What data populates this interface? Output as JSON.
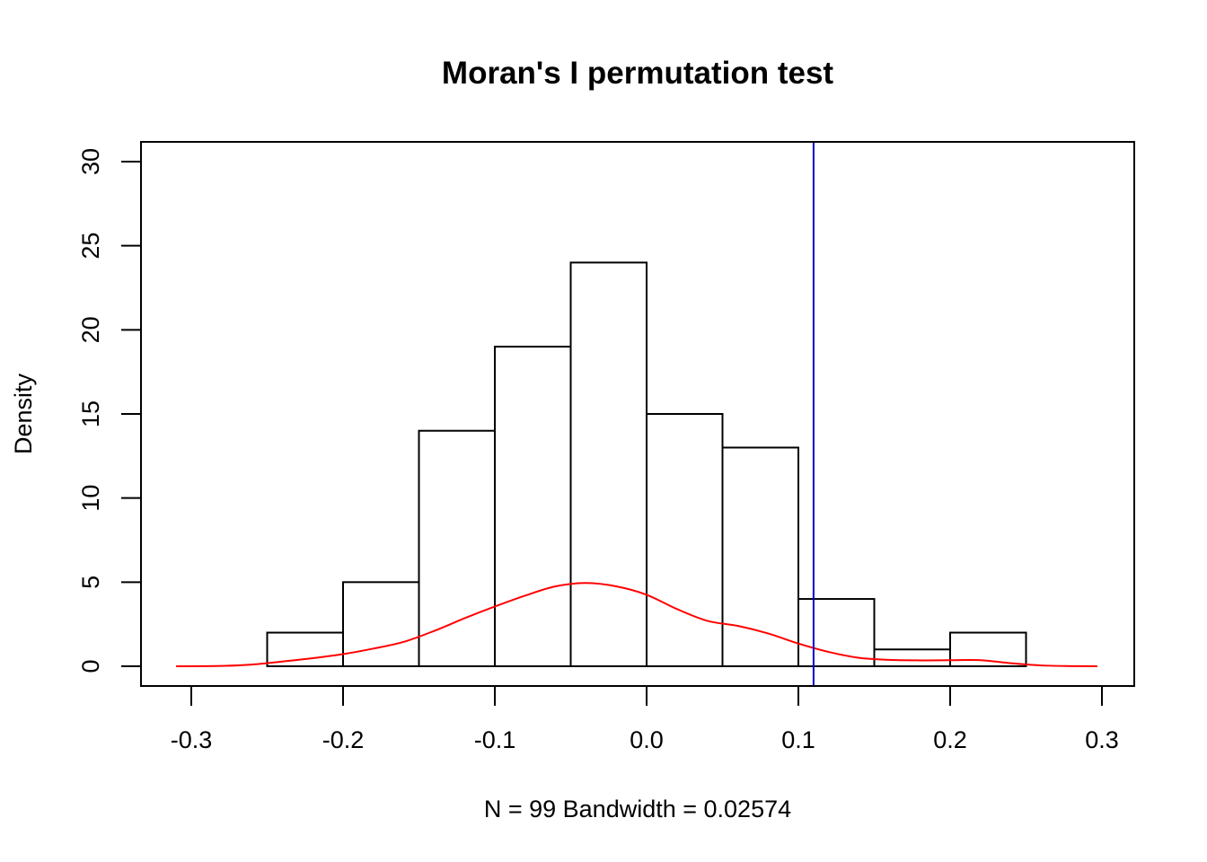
{
  "chart_data": {
    "type": "bar",
    "title": "Moran's I permutation test",
    "xlabel": "N = 99   Bandwidth = 0.02574",
    "ylabel": "Density",
    "xlim": [
      -0.3,
      0.3
    ],
    "ylim": [
      0,
      30
    ],
    "x_ticks": [
      -0.3,
      -0.2,
      -0.1,
      0.0,
      0.1,
      0.2,
      0.3
    ],
    "x_tick_labels": [
      "-0.3",
      "-0.2",
      "-0.1",
      "0.0",
      "0.1",
      "0.2",
      "0.3"
    ],
    "y_ticks": [
      0,
      5,
      10,
      15,
      20,
      25,
      30
    ],
    "y_tick_labels": [
      "0",
      "5",
      "10",
      "15",
      "20",
      "25",
      "30"
    ],
    "histogram": {
      "bin_edges": [
        -0.25,
        -0.2,
        -0.15,
        -0.1,
        -0.05,
        0.0,
        0.05,
        0.1,
        0.15,
        0.2,
        0.25
      ],
      "density": [
        2,
        5,
        14,
        19,
        24,
        15,
        13,
        4,
        1,
        2
      ],
      "fill": "#ffffff",
      "stroke": "#000000"
    },
    "density_curve": {
      "color": "#ff0000",
      "x": [
        -0.31,
        -0.28,
        -0.26,
        -0.24,
        -0.22,
        -0.2,
        -0.18,
        -0.16,
        -0.14,
        -0.12,
        -0.1,
        -0.08,
        -0.06,
        -0.04,
        -0.02,
        0.0,
        0.02,
        0.04,
        0.06,
        0.08,
        0.1,
        0.12,
        0.14,
        0.16,
        0.18,
        0.2,
        0.22,
        0.24,
        0.26,
        0.28,
        0.297
      ],
      "y": [
        0.0,
        0.02,
        0.1,
        0.28,
        0.48,
        0.72,
        1.05,
        1.45,
        2.1,
        2.85,
        3.55,
        4.2,
        4.75,
        4.95,
        4.75,
        4.25,
        3.4,
        2.7,
        2.4,
        1.95,
        1.35,
        0.85,
        0.5,
        0.38,
        0.35,
        0.36,
        0.36,
        0.18,
        0.05,
        0.01,
        0.0
      ]
    },
    "observed_line": {
      "x": 0.11,
      "color": "#0000cc"
    },
    "grid": false,
    "legend": "none"
  }
}
